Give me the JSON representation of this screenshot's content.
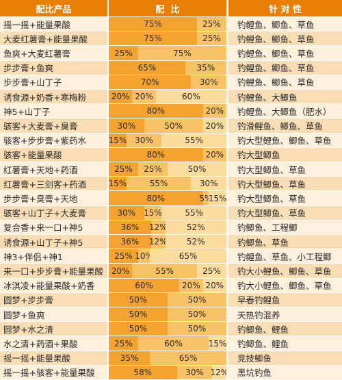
{
  "header": {
    "product": "配比产品",
    "ratio": "配  比",
    "target": "针 对 性"
  },
  "rows": [
    {
      "name": "摇一摇+能量果酸",
      "segments": [
        {
          "pct": 75,
          "label": "75%"
        },
        {
          "pct": 25,
          "label": "25%"
        }
      ],
      "target": "钓鲤鱼、鲫鱼、草鱼"
    },
    {
      "name": "大麦红薯膏+能量果酸",
      "segments": [
        {
          "pct": 75,
          "label": "75%"
        },
        {
          "pct": 25,
          "label": "25%"
        }
      ],
      "target": "钓鲤鱼、鲫鱼、草鱼"
    },
    {
      "name": "鱼爽+大麦红薯膏",
      "segments": [
        {
          "pct": 25,
          "label": "25%"
        },
        {
          "pct": 75,
          "label": "75%"
        }
      ],
      "target": "钓鲤鱼、鲫鱼、草鱼"
    },
    {
      "name": "步步膏+鱼爽",
      "segments": [
        {
          "pct": 65,
          "label": "65%"
        },
        {
          "pct": 35,
          "label": "35%"
        }
      ],
      "target": "钓鲤鱼、鲫鱼、草鱼"
    },
    {
      "name": "步步膏+山丁子",
      "segments": [
        {
          "pct": 70,
          "label": "70%"
        },
        {
          "pct": 30,
          "label": "30%"
        }
      ],
      "target": "钓鲤鱼、鲫鱼、草鱼"
    },
    {
      "name": "诱食源+奶香+寒梅粉",
      "segments": [
        {
          "pct": 20,
          "label": "20%"
        },
        {
          "pct": 20,
          "label": "20%"
        },
        {
          "pct": 60,
          "label": "60%"
        }
      ],
      "target": "钓鲤鱼、大鲫鱼"
    },
    {
      "name": "神5+山丁子",
      "segments": [
        {
          "pct": 80,
          "label": "80%"
        },
        {
          "pct": 20,
          "label": "20%"
        }
      ],
      "target": "钓鲤鱼、大鲫鱼（肥水）"
    },
    {
      "name": "骇客+大麦膏+臭膏",
      "segments": [
        {
          "pct": 30,
          "label": "30%"
        },
        {
          "pct": 50,
          "label": "50%"
        },
        {
          "pct": 20,
          "label": "20%"
        }
      ],
      "target": "钓滑鲤鱼、鲫鱼、草鱼"
    },
    {
      "name": "骇客+步步膏+紫药水",
      "segments": [
        {
          "pct": 15,
          "label": "15%"
        },
        {
          "pct": 30,
          "label": "30%"
        },
        {
          "pct": 55,
          "label": "55%"
        }
      ],
      "target": "钓大型鲤鱼、鲫鱼、草鱼"
    },
    {
      "name": "骇客+能量果酸",
      "segments": [
        {
          "pct": 80,
          "label": "80%"
        },
        {
          "pct": 20,
          "label": "20%"
        }
      ],
      "target": "钓大型鲫鱼"
    },
    {
      "name": "红薯膏+天地+药酒",
      "segments": [
        {
          "pct": 25,
          "label": "25%"
        },
        {
          "pct": 25,
          "label": "25%"
        },
        {
          "pct": 50,
          "label": "50%"
        }
      ],
      "target": "钓大型鲫鱼、草鱼"
    },
    {
      "name": "红薯膏+三剑客+药酒",
      "segments": [
        {
          "pct": 15,
          "label": "15%"
        },
        {
          "pct": 55,
          "label": "55%"
        },
        {
          "pct": 30,
          "label": "30%"
        }
      ],
      "target": "钓大型鲫鱼、草鱼"
    },
    {
      "name": "步步膏+臭膏+天地",
      "segments": [
        {
          "pct": 80,
          "label": "80%"
        },
        {
          "pct": 5,
          "label": "5%"
        },
        {
          "pct": 15,
          "label": "15%"
        }
      ],
      "target": "钓大型鲫鱼、草鱼"
    },
    {
      "name": "骇客+山丁子+大麦膏",
      "segments": [
        {
          "pct": 30,
          "label": "30%"
        },
        {
          "pct": 15,
          "label": "15%"
        },
        {
          "pct": 55,
          "label": "55%"
        }
      ],
      "target": "钓大型鲫鱼、草鱼"
    },
    {
      "name": "复合香+来一口+神5",
      "segments": [
        {
          "pct": 36,
          "label": "36%"
        },
        {
          "pct": 12,
          "label": "12%"
        },
        {
          "pct": 52,
          "label": "52%"
        }
      ],
      "target": "钓鲫鱼、工程鲫"
    },
    {
      "name": "诱食源+山丁子+神5",
      "segments": [
        {
          "pct": 36,
          "label": "36%"
        },
        {
          "pct": 12,
          "label": "12%"
        },
        {
          "pct": 52,
          "label": "52%"
        }
      ],
      "target": "钓鲫鱼、草鱼"
    },
    {
      "name": "神3+伴侣+神1",
      "segments": [
        {
          "pct": 25,
          "label": "25%"
        },
        {
          "pct": 10,
          "label": "10%"
        },
        {
          "pct": 65,
          "label": "65%"
        }
      ],
      "target": "钓鲤鱼、草鱼、小工程鲫"
    },
    {
      "name": "来一口+步步膏+能量果酸",
      "segments": [
        {
          "pct": 20,
          "label": "20%"
        },
        {
          "pct": 55,
          "label": "55%"
        },
        {
          "pct": 25,
          "label": "25%"
        }
      ],
      "target": "钓大小鲤鱼、鲫鱼、草鱼"
    },
    {
      "name": "冰淇凌+能量果酸+奶香",
      "segments": [
        {
          "pct": 60,
          "label": "60%"
        },
        {
          "pct": 20,
          "label": "20%"
        },
        {
          "pct": 20,
          "label": "20%"
        }
      ],
      "target": "钓大小鲤鱼、鲫鱼、草鱼"
    },
    {
      "name": "圆梦+步步膏",
      "segments": [
        {
          "pct": 50,
          "label": "50%"
        },
        {
          "pct": 50,
          "label": "50%"
        }
      ],
      "target": "早春钓鲤鱼"
    },
    {
      "name": "圆梦+鱼爽",
      "segments": [
        {
          "pct": 50,
          "label": "50%"
        },
        {
          "pct": 50,
          "label": "50%"
        }
      ],
      "target": "天热钓混养"
    },
    {
      "name": "圆梦+水之清",
      "segments": [
        {
          "pct": 50,
          "label": "50%"
        },
        {
          "pct": 50,
          "label": "50%"
        }
      ],
      "target": "钓鲫鱼、鲤鱼"
    },
    {
      "name": "水之清+药酒+果酸",
      "segments": [
        {
          "pct": 25,
          "label": "25%"
        },
        {
          "pct": 60,
          "label": "60%"
        },
        {
          "pct": 15,
          "label": "15%"
        }
      ],
      "target": "钓鲫鱼、鲤鱼"
    },
    {
      "name": "摇一摇+能量果酸",
      "segments": [
        {
          "pct": 35,
          "label": "35%"
        },
        {
          "pct": 65,
          "label": "65%"
        }
      ],
      "target": "竞技鲫鱼"
    },
    {
      "name": "摇一摇+骇客+能量果酸",
      "segments": [
        {
          "pct": 58,
          "label": "58%"
        },
        {
          "pct": 30,
          "label": "30%"
        },
        {
          "pct": 12,
          "label": "12%"
        }
      ],
      "target": "黑坑钓鱼"
    }
  ],
  "colors": {
    "header_bg": "#e87e04",
    "segment_colors": [
      "#f5a330",
      "#f8c266",
      "#fbdc9e"
    ],
    "light_row": "#fdf0dc",
    "alt_row": "#f8ddb5"
  }
}
